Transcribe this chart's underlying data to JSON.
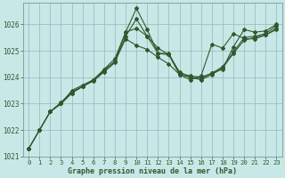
{
  "xlabel": "Graphe pression niveau de la mer (hPa)",
  "hours": [
    0,
    1,
    2,
    3,
    4,
    5,
    6,
    7,
    8,
    9,
    10,
    11,
    12,
    13,
    14,
    15,
    16,
    17,
    18,
    19,
    20,
    21,
    22,
    23
  ],
  "line1": [
    1021.3,
    1022.0,
    1022.7,
    1023.0,
    1023.5,
    1023.7,
    1023.9,
    1024.3,
    1024.7,
    1025.7,
    1026.6,
    1025.8,
    1024.9,
    1024.9,
    1024.15,
    1024.05,
    1024.0,
    1024.15,
    1024.3,
    1025.15,
    1025.8,
    1025.7,
    1025.75,
    1026.0
  ],
  "line2_x": [
    0,
    1,
    2,
    3,
    4,
    5,
    6,
    7,
    8,
    9,
    10,
    11,
    12,
    13,
    14,
    15,
    16,
    17,
    18,
    19,
    20,
    21,
    22,
    23
  ],
  "line2": [
    1021.3,
    1022.0,
    1022.7,
    1023.0,
    1023.4,
    1023.65,
    1023.85,
    1024.2,
    1024.55,
    1025.55,
    1026.2,
    1025.55,
    1024.9,
    1024.85,
    1024.1,
    1024.0,
    1023.9,
    1024.1,
    1024.35,
    1024.9,
    1025.4,
    1025.5,
    1025.6,
    1025.85
  ],
  "line3_x": [
    0,
    1,
    2,
    3,
    4,
    5,
    6,
    7,
    8,
    9,
    10,
    11,
    12,
    13,
    14,
    15,
    16,
    17,
    18,
    19,
    20,
    21,
    22,
    23
  ],
  "line3": [
    1021.3,
    1022.0,
    1022.7,
    1023.05,
    1023.45,
    1023.65,
    1023.9,
    1024.25,
    1024.6,
    1025.45,
    1025.2,
    1025.05,
    1024.75,
    1024.5,
    1024.1,
    1023.9,
    1024.05,
    1025.25,
    1025.1,
    1025.65,
    1025.45,
    1025.45,
    1025.6,
    1025.8
  ],
  "line4_x": [
    2,
    3,
    4,
    5,
    6,
    7,
    8,
    9,
    10,
    11,
    12,
    13,
    14,
    15,
    16,
    17,
    18,
    19,
    20,
    21,
    22,
    23
  ],
  "line4": [
    1022.7,
    1023.0,
    1023.4,
    1023.65,
    1023.9,
    1024.25,
    1024.6,
    1025.7,
    1025.85,
    1025.55,
    1025.1,
    1024.85,
    1024.2,
    1024.0,
    1023.95,
    1024.15,
    1024.4,
    1024.95,
    1025.5,
    1025.55,
    1025.65,
    1025.95
  ],
  "line_color": "#2d5a2d",
  "bg_color": "#c8e8e8",
  "grid_color": "#9bbfbf",
  "ylim_min": 1021.0,
  "ylim_max": 1026.8,
  "yticks": [
    1021,
    1022,
    1023,
    1024,
    1025,
    1026
  ],
  "xticks": [
    0,
    1,
    2,
    3,
    4,
    5,
    6,
    7,
    8,
    9,
    10,
    11,
    12,
    13,
    14,
    15,
    16,
    17,
    18,
    19,
    20,
    21,
    22,
    23
  ],
  "tick_fontsize": 5.5,
  "xlabel_fontsize": 6.0
}
